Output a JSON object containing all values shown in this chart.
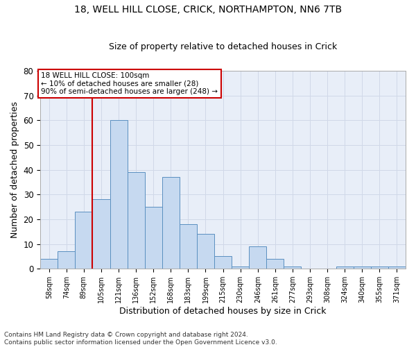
{
  "title_line1": "18, WELL HILL CLOSE, CRICK, NORTHAMPTON, NN6 7TB",
  "title_line2": "Size of property relative to detached houses in Crick",
  "xlabel": "Distribution of detached houses by size in Crick",
  "ylabel": "Number of detached properties",
  "footnote": "Contains HM Land Registry data © Crown copyright and database right 2024.\nContains public sector information licensed under the Open Government Licence v3.0.",
  "categories": [
    "58sqm",
    "74sqm",
    "89sqm",
    "105sqm",
    "121sqm",
    "136sqm",
    "152sqm",
    "168sqm",
    "183sqm",
    "199sqm",
    "215sqm",
    "230sqm",
    "246sqm",
    "261sqm",
    "277sqm",
    "293sqm",
    "308sqm",
    "324sqm",
    "340sqm",
    "355sqm",
    "371sqm"
  ],
  "values": [
    4,
    7,
    23,
    28,
    60,
    39,
    25,
    37,
    18,
    14,
    5,
    1,
    9,
    4,
    1,
    0,
    0,
    1,
    1,
    1,
    1
  ],
  "bar_color": "#c6d9f0",
  "bar_edge_color": "#5a8fc0",
  "grid_color": "#d0d8e8",
  "bg_color": "#e8eef8",
  "vline_color": "#cc0000",
  "vline_x": 3.0,
  "annotation_text": "18 WELL HILL CLOSE: 100sqm\n← 10% of detached houses are smaller (28)\n90% of semi-detached houses are larger (248) →",
  "annotation_box_color": "#cc0000",
  "ylim": [
    0,
    80
  ],
  "yticks": [
    0,
    10,
    20,
    30,
    40,
    50,
    60,
    70,
    80
  ],
  "title1_fontsize": 10,
  "title2_fontsize": 9,
  "ylabel_fontsize": 9,
  "xlabel_fontsize": 9,
  "annotation_fontsize": 7.5,
  "footnote_fontsize": 6.5
}
